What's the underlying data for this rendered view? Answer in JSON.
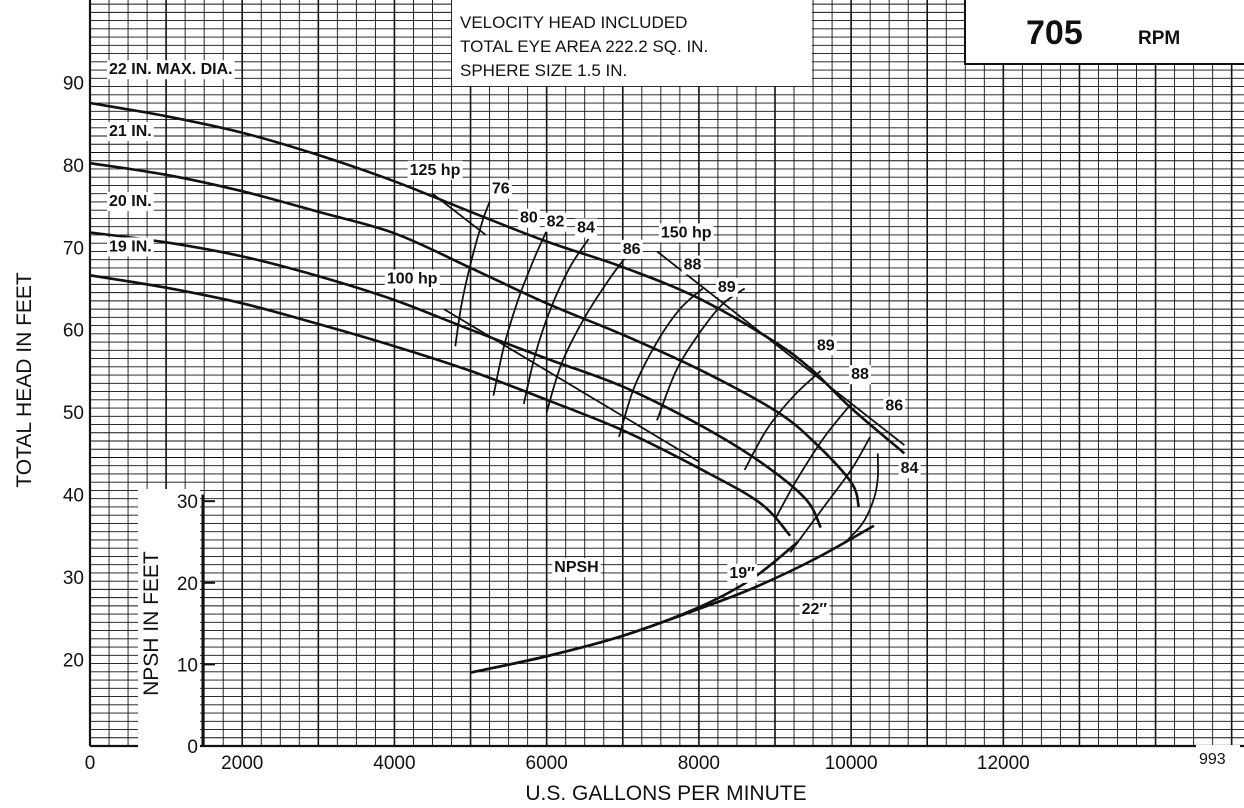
{
  "chart_data": {
    "type": "line",
    "title": "",
    "speed": {
      "value": "705",
      "unit": "RPM"
    },
    "info_lines": [
      "VELOCITY HEAD INCLUDED",
      "TOTAL EYE AREA 222.2 SQ. IN.",
      "SPHERE SIZE 1.5 IN."
    ],
    "chart_id": "993",
    "xlabel": "U.S. GALLONS PER MINUTE",
    "ylabel": "TOTAL HEAD IN FEET",
    "y2label": "NPSH IN FEET",
    "xlim": [
      0,
      15000
    ],
    "ylim": [
      9.5,
      100
    ],
    "xticks": [
      0,
      2000,
      4000,
      6000,
      8000,
      10000,
      12000
    ],
    "yticks": [
      20,
      30,
      40,
      50,
      60,
      70,
      80,
      90
    ],
    "y2ticks": [
      0,
      10,
      20,
      30
    ],
    "grid": true,
    "series": [
      {
        "name": "22 IN. MAX. DIA.",
        "x": [
          0,
          1000,
          2000,
          3000,
          4000,
          5000,
          6000,
          7000,
          8000,
          9000,
          9500,
          10000,
          10700
        ],
        "y": [
          87.5,
          85.9,
          83.9,
          81.2,
          78,
          74.3,
          70.7,
          67.6,
          63.8,
          58.5,
          55,
          50.5,
          45
        ]
      },
      {
        "name": "21 IN.",
        "x": [
          0,
          1000,
          2000,
          3000,
          4000,
          5000,
          6000,
          7000,
          8000,
          9000,
          9500,
          10000,
          10100
        ],
        "y": [
          80.2,
          78.8,
          76.8,
          74.3,
          71.7,
          67.5,
          63.2,
          59.4,
          55.2,
          50.2,
          46.5,
          41.5,
          38.5
        ]
      },
      {
        "name": "20 IN.",
        "x": [
          0,
          1000,
          2000,
          3000,
          4000,
          5000,
          6000,
          7000,
          8000,
          8800,
          9400,
          9600
        ],
        "y": [
          71.8,
          70.6,
          68.9,
          66.5,
          63.6,
          60,
          56.5,
          53.1,
          48.5,
          44,
          39.5,
          36
        ]
      },
      {
        "name": "19 IN.",
        "x": [
          0,
          1000,
          2000,
          3000,
          4000,
          5000,
          6000,
          7000,
          8000,
          8800,
          9200
        ],
        "y": [
          66.6,
          65.1,
          63.2,
          60.7,
          58,
          55,
          51.5,
          47.8,
          43.2,
          39,
          35
        ]
      }
    ],
    "efficiency_contours": [
      {
        "label": "76",
        "x": [
          4800,
          4880,
          5000,
          5150,
          5250
        ],
        "y": [
          58,
          63,
          68,
          73,
          75.5
        ]
      },
      {
        "label": "80",
        "x": [
          5300,
          5440,
          5620,
          5830,
          6000
        ],
        "y": [
          52,
          58,
          63.5,
          68.5,
          72
        ]
      },
      {
        "label": "82",
        "x": [
          5700,
          5850,
          6050,
          6300,
          6550
        ],
        "y": [
          51,
          57,
          62.5,
          67.5,
          71
        ]
      },
      {
        "label": "84",
        "x": [
          6000,
          6200,
          6500,
          6850,
          7100
        ],
        "y": [
          50,
          56,
          61.5,
          66.5,
          69.5
        ]
      },
      {
        "label": "86",
        "x": [
          6950,
          7150,
          7450,
          7750,
          8050
        ],
        "y": [
          47,
          53,
          58.5,
          62.5,
          65
        ]
      },
      {
        "label": "88",
        "x": [
          7450,
          7700,
          8000,
          8300,
          8600
        ],
        "y": [
          49,
          55,
          59.5,
          63,
          65
        ]
      },
      {
        "label": "89",
        "x": [
          8600,
          8900,
          9250,
          9600
        ],
        "y": [
          43,
          48,
          52,
          55
        ]
      },
      {
        "label": "88",
        "x": [
          9000,
          9300,
          9650,
          10000
        ],
        "y": [
          37,
          42,
          47,
          51
        ]
      },
      {
        "label": "86",
        "x": [
          9200,
          9600,
          10000,
          10250
        ],
        "y": [
          33,
          38,
          43,
          47
        ]
      },
      {
        "label": "84",
        "x": [
          9900,
          10150,
          10300,
          10350,
          10350
        ],
        "y": [
          34,
          36.5,
          39.5,
          42,
          45
        ]
      }
    ],
    "efficiency_labels": [
      {
        "text": "76",
        "x": 5280,
        "y": 76.5
      },
      {
        "text": "80",
        "x": 5650,
        "y": 73
      },
      {
        "text": "82",
        "x": 6000,
        "y": 72.5
      },
      {
        "text": "84",
        "x": 6400,
        "y": 71.8
      },
      {
        "text": "86",
        "x": 7000,
        "y": 69.2
      },
      {
        "text": "88",
        "x": 7800,
        "y": 67.3
      },
      {
        "text": "89",
        "x": 8250,
        "y": 64.6
      },
      {
        "text": "89",
        "x": 9550,
        "y": 57.5
      },
      {
        "text": "88",
        "x": 10000,
        "y": 54
      },
      {
        "text": "86",
        "x": 10450,
        "y": 50.2
      },
      {
        "text": "84",
        "x": 10650,
        "y": 42.6
      }
    ],
    "hp_lines": [
      {
        "label": "125 hp",
        "x": [
          4500,
          5200
        ],
        "y": [
          76.5,
          71.5
        ]
      },
      {
        "label": "150 hp",
        "x": [
          7450,
          10700
        ],
        "y": [
          69.5,
          46
        ]
      },
      {
        "label": "100 hp",
        "x": [
          4650,
          8000
        ],
        "y": [
          62.5,
          44
        ]
      }
    ],
    "hp_labels": [
      {
        "text": "125 hp",
        "x": 4200,
        "y": 78.8
      },
      {
        "text": "150 hp",
        "x": 7500,
        "y": 71.2
      },
      {
        "text": "100 hp",
        "x": 3900,
        "y": 65.6
      }
    ],
    "npsh": {
      "label": "NPSH",
      "y2_zero_head": 9.5,
      "y2_scale": 0.99,
      "series": [
        {
          "name": "19″",
          "x": [
            5000,
            6000,
            7000,
            8000,
            8700,
            9300
          ],
          "npsh": [
            9,
            11,
            13.5,
            17,
            20.5,
            25
          ]
        },
        {
          "name": "22″",
          "x": [
            5000,
            6000,
            7000,
            8000,
            8700,
            9500,
            10300
          ],
          "npsh": [
            9,
            11,
            13.5,
            16.8,
            19.3,
            22.8,
            27
          ]
        }
      ],
      "labels": [
        {
          "text": "19″",
          "x": 8400,
          "y": 29.9
        },
        {
          "text": "22″",
          "x": 9350,
          "y": 25.5
        }
      ]
    },
    "curve_labels": [
      {
        "text": "22 IN. MAX. DIA.",
        "x": 250,
        "y": 91
      },
      {
        "text": "21 IN.",
        "x": 250,
        "y": 83.5
      },
      {
        "text": "20 IN.",
        "x": 250,
        "y": 75
      },
      {
        "text": "19 IN.",
        "x": 250,
        "y": 69.5
      }
    ]
  }
}
